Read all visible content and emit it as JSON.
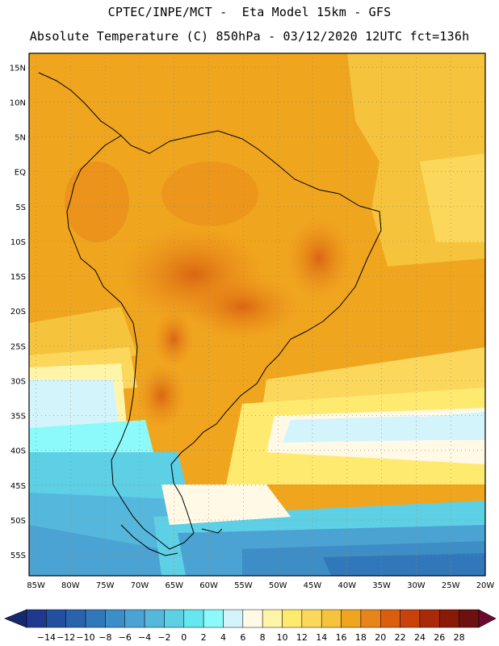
{
  "header": {
    "line1": "CPTEC/INPE/MCT -  Eta Model 15km - GFS",
    "line2": "Absolute Temperature (C) 850hPa - 03/12/2020 12UTC fct=136h"
  },
  "map": {
    "lat_labels": [
      "15N",
      "10N",
      "5N",
      "EQ",
      "5S",
      "10S",
      "15S",
      "20S",
      "25S",
      "30S",
      "35S",
      "40S",
      "45S",
      "50S",
      "55S"
    ],
    "lat_values": [
      15,
      10,
      5,
      0,
      -5,
      -10,
      -15,
      -20,
      -25,
      -30,
      -35,
      -40,
      -45,
      -50,
      -55
    ],
    "lon_labels": [
      "85W",
      "80W",
      "75W",
      "70W",
      "65W",
      "60W",
      "55W",
      "50W",
      "45W",
      "40W",
      "35W",
      "30W",
      "25W",
      "20W"
    ],
    "lon_values": [
      -85,
      -80,
      -75,
      -70,
      -65,
      -60,
      -55,
      -50,
      -45,
      -40,
      -35,
      -30,
      -25,
      -20
    ],
    "lat_range": [
      -58,
      17
    ],
    "lon_range": [
      -86,
      -20
    ]
  },
  "colorbar": {
    "labels": [
      "-14",
      "-12",
      "-10",
      "-8",
      "-6",
      "-4",
      "-2",
      "0",
      "2",
      "4",
      "6",
      "8",
      "10",
      "12",
      "14",
      "16",
      "18",
      "20",
      "22",
      "24",
      "26",
      "28"
    ],
    "colors": [
      "#1f3a8c",
      "#23509e",
      "#2a63ad",
      "#3178bb",
      "#3d8dc7",
      "#4aa3d3",
      "#55b7dc",
      "#5ed0e6",
      "#66e6ee",
      "#8cfafb",
      "#d4f4fc",
      "#fff9e6",
      "#fff5a8",
      "#ffea70",
      "#fbd85c",
      "#f5c33c",
      "#f0a51e",
      "#e8851a",
      "#db5e0e",
      "#c8420a",
      "#a82a08",
      "#8a1a08",
      "#6d1010"
    ],
    "low_arrow_color": "#16286e",
    "high_arrow_color": "#6a0a30"
  }
}
